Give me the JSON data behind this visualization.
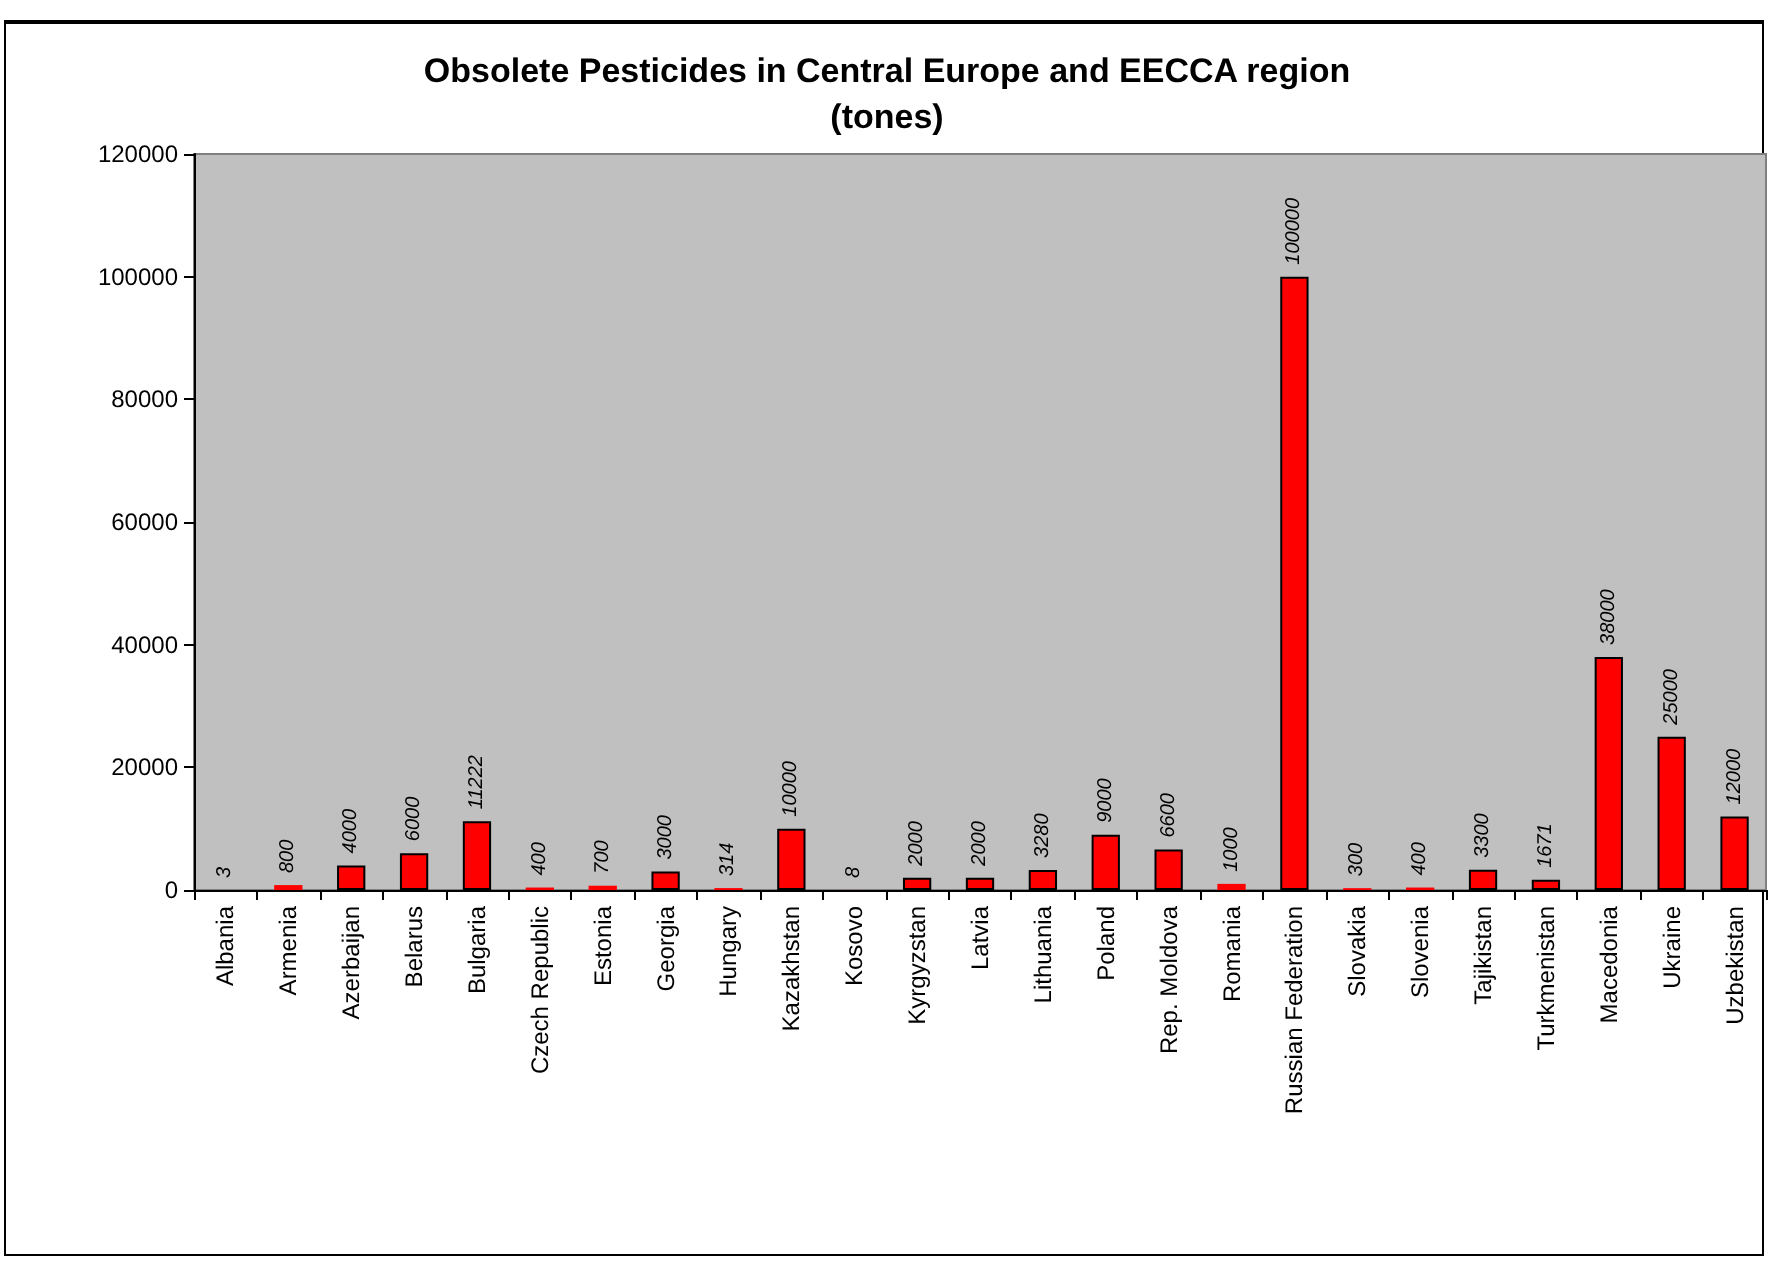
{
  "chart_data": {
    "type": "bar",
    "title": "Obsolete Pesticides in Central Europe and EECCA region",
    "subtitle": "(tones)",
    "categories": [
      "Albania",
      "Armenia",
      "Azerbaijan",
      "Belarus",
      "Bulgaria",
      "Czech Republic",
      "Estonia",
      "Georgia",
      "Hungary",
      "Kazakhstan",
      "Kosovo",
      "Kyrgyzstan",
      "Latvia",
      "Lithuania",
      "Poland",
      "Rep. Moldova",
      "Romania",
      "Russian Federation",
      "Slovakia",
      "Slovenia",
      "Tajikistan",
      "Turkmenistan",
      "Macedonia",
      "Ukraine",
      "Uzbekistan"
    ],
    "values": [
      3,
      800,
      4000,
      6000,
      11222,
      400,
      700,
      3000,
      314,
      10000,
      8,
      2000,
      2000,
      3280,
      9000,
      6600,
      1000,
      100000,
      300,
      400,
      3300,
      1671,
      38000,
      25000,
      12000
    ],
    "color": "#ff0000",
    "ylim": [
      0,
      120000
    ],
    "yticks": [
      0,
      20000,
      40000,
      60000,
      80000,
      100000,
      120000
    ],
    "data_labels": true,
    "grid": false
  }
}
